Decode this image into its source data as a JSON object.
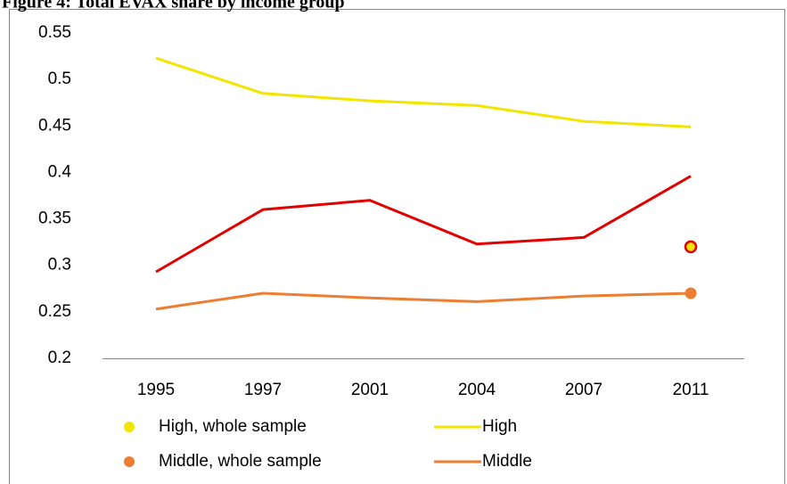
{
  "chart_data": {
    "type": "line",
    "title": "Figure 4: Total EVAX share by income group",
    "categories": [
      "1995",
      "1997",
      "2001",
      "2004",
      "2007",
      "2011"
    ],
    "ylim": [
      0.2,
      0.55
    ],
    "yticks": [
      0.2,
      0.25,
      0.3,
      0.35,
      0.4,
      0.45,
      0.5,
      0.55
    ],
    "grid": false,
    "series": [
      {
        "name": "High, whole sample",
        "style": "marker",
        "color": "#f2e600",
        "edge_color": "#e00000",
        "values": [
          null,
          null,
          null,
          null,
          null,
          0.32
        ]
      },
      {
        "name": "High",
        "style": "line",
        "color": "#f2e600",
        "values": [
          0.523,
          0.485,
          0.477,
          0.472,
          0.455,
          0.449
        ]
      },
      {
        "name": "Middle, whole sample",
        "style": "marker",
        "color": "#ed7d31",
        "values": [
          null,
          null,
          null,
          null,
          null,
          0.27
        ]
      },
      {
        "name": "Middle",
        "style": "line",
        "color": "#ed7d31",
        "values": [
          0.253,
          0.27,
          0.265,
          0.261,
          0.267,
          0.27
        ]
      },
      {
        "style": "line",
        "color": "#e00000",
        "values": [
          0.293,
          0.36,
          0.37,
          0.323,
          0.33,
          0.396
        ]
      }
    ]
  }
}
